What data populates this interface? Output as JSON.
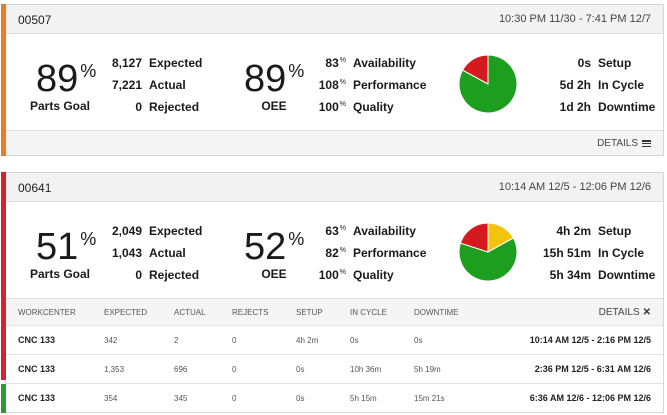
{
  "colors": {
    "orange": "#f07c21",
    "red": "#d9202f",
    "green": "#2a9a32",
    "pie_green": "#1e9e1e",
    "pie_red": "#d4191f",
    "pie_yellow": "#f2c40d"
  },
  "card1": {
    "id": "00507",
    "range": "10:30 PM 11/30 - 7:41 PM 12/7",
    "parts_goal": {
      "value": "89",
      "unit": "%",
      "label": "Parts Goal"
    },
    "counts": [
      {
        "value": "8,127",
        "label": "Expected"
      },
      {
        "value": "7,221",
        "label": "Actual"
      },
      {
        "value": "0",
        "label": "Rejected"
      }
    ],
    "oee": {
      "value": "89",
      "unit": "%",
      "label": "OEE"
    },
    "factors": [
      {
        "value": "83",
        "unit": "%",
        "label": "Availability"
      },
      {
        "value": "108",
        "unit": "%",
        "label": "Performance"
      },
      {
        "value": "100",
        "unit": "%",
        "label": "Quality"
      }
    ],
    "pie": {
      "green": 0.83,
      "red": 0.17,
      "yellow": 0.0
    },
    "times": [
      {
        "value": "0s",
        "label": "Setup"
      },
      {
        "value": "5d 2h",
        "label": "In Cycle"
      },
      {
        "value": "1d 2h",
        "label": "Downtime"
      }
    ],
    "details_label": "DETAILS"
  },
  "card2": {
    "id": "00641",
    "range": "10:14 AM 12/5 - 12:06 PM 12/6",
    "parts_goal": {
      "value": "51",
      "unit": "%",
      "label": "Parts Goal"
    },
    "counts": [
      {
        "value": "2,049",
        "label": "Expected"
      },
      {
        "value": "1,043",
        "label": "Actual"
      },
      {
        "value": "0",
        "label": "Rejected"
      }
    ],
    "oee": {
      "value": "52",
      "unit": "%",
      "label": "OEE"
    },
    "factors": [
      {
        "value": "63",
        "unit": "%",
        "label": "Availability"
      },
      {
        "value": "82",
        "unit": "%",
        "label": "Performance"
      },
      {
        "value": "100",
        "unit": "%",
        "label": "Quality"
      }
    ],
    "pie": {
      "green": 0.63,
      "red": 0.2,
      "yellow": 0.17
    },
    "times": [
      {
        "value": "4h 2m",
        "label": "Setup"
      },
      {
        "value": "15h 51m",
        "label": "In Cycle"
      },
      {
        "value": "5h 34m",
        "label": "Downtime"
      }
    ],
    "details_label": "DETAILS",
    "table": {
      "headers": [
        "WORKCENTER",
        "EXPECTED",
        "ACTUAL",
        "REJECTS",
        "SETUP",
        "IN CYCLE",
        "DOWNTIME"
      ],
      "rows": [
        {
          "name": "CNC 133",
          "expected": "342",
          "actual": "2",
          "rejects": "0",
          "setup": "4h 2m",
          "in_cycle": "0s",
          "downtime": "0s",
          "range": "10:14 AM 12/5 - 2:16 PM 12/5"
        },
        {
          "name": "CNC 133",
          "expected": "1,353",
          "actual": "696",
          "rejects": "0",
          "setup": "0s",
          "in_cycle": "10h 36m",
          "downtime": "5h 19m",
          "range": "2:36 PM 12/5 - 6:31 AM 12/6"
        },
        {
          "name": "CNC 133",
          "expected": "354",
          "actual": "345",
          "rejects": "0",
          "setup": "0s",
          "in_cycle": "5h 15m",
          "downtime": "15m 21s",
          "range": "6:36 AM 12/6 - 12:06 PM 12/6"
        }
      ]
    }
  }
}
